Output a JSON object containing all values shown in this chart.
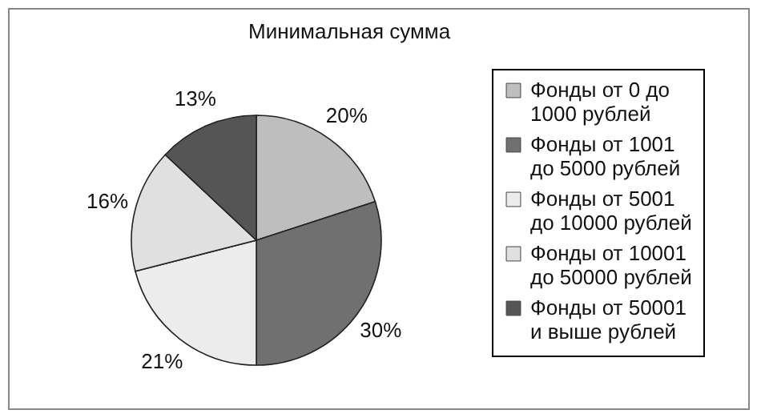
{
  "chart_data": {
    "type": "pie",
    "title": "Минимальная сумма",
    "categories": [
      "Фонды от 0 до 1000 рублей",
      "Фонды от 1001 до 5000 рублей",
      "Фонды от 5001 до 10000 рублей",
      "Фонды от 10001 до 50000 рублей",
      "Фонды от 50001 и выше рублей"
    ],
    "values": [
      20,
      30,
      21,
      16,
      13
    ],
    "value_labels": [
      "20%",
      "30%",
      "21%",
      "16%",
      "13%"
    ],
    "colors": [
      "#bebebe",
      "#707070",
      "#ececec",
      "#e0e0e0",
      "#555555"
    ],
    "legend": "right"
  }
}
